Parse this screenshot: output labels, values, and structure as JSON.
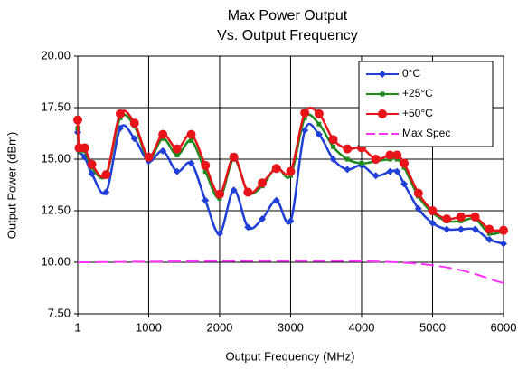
{
  "chart_data": {
    "type": "line",
    "title": [
      "Max  Power Output",
      "Vs. Output Frequency"
    ],
    "x_label": "Output Frequency (MHz)",
    "y_label": "Output Power (dBm)",
    "x": [
      1,
      20,
      100,
      200,
      400,
      600,
      800,
      1000,
      1200,
      1400,
      1600,
      1800,
      2000,
      2200,
      2400,
      2600,
      2800,
      3000,
      3200,
      3400,
      3600,
      3800,
      4000,
      4200,
      4400,
      4500,
      4600,
      4800,
      5000,
      5200,
      5400,
      5600,
      5800,
      6000
    ],
    "series": [
      {
        "name": "0°C",
        "color": "#1f3fd6",
        "marker": "diamond",
        "values": [
          16.3,
          15.4,
          15.1,
          14.3,
          13.4,
          16.5,
          16.0,
          14.9,
          15.4,
          14.4,
          14.8,
          13.0,
          11.4,
          13.5,
          11.7,
          12.1,
          13.0,
          12.0,
          16.4,
          16.2,
          15.0,
          14.5,
          14.7,
          14.2,
          14.4,
          14.4,
          13.8,
          12.6,
          11.9,
          11.6,
          11.6,
          11.6,
          11.1,
          10.9
        ]
      },
      {
        "name": "+25°C",
        "color": "#1e8a1e",
        "marker": "square",
        "values": [
          16.5,
          15.4,
          15.4,
          14.6,
          14.2,
          17.0,
          16.6,
          15.0,
          16.0,
          15.2,
          15.9,
          14.4,
          13.1,
          15.0,
          13.4,
          13.7,
          14.6,
          14.2,
          17.0,
          16.7,
          15.6,
          15.0,
          14.8,
          14.9,
          15.0,
          15.0,
          14.6,
          13.2,
          12.4,
          12.0,
          12.0,
          12.1,
          11.4,
          11.5
        ]
      },
      {
        "name": "+50°C",
        "color": "#e8141a",
        "marker": "circle",
        "values": [
          16.9,
          15.55,
          15.55,
          14.75,
          14.25,
          17.2,
          16.75,
          15.1,
          16.2,
          15.5,
          16.2,
          14.7,
          13.3,
          15.1,
          13.4,
          13.85,
          14.55,
          14.4,
          17.25,
          17.2,
          15.95,
          15.5,
          15.55,
          15.0,
          15.2,
          15.2,
          14.8,
          13.35,
          12.5,
          12.1,
          12.2,
          12.2,
          11.6,
          11.55
        ]
      },
      {
        "name": "Max Spec",
        "color": "#ff33ff",
        "marker": "none",
        "dashed": true,
        "x": [
          1,
          4500,
          6000
        ],
        "values": [
          10,
          10,
          9
        ]
      }
    ],
    "xlim": [
      1,
      6000
    ],
    "xticks": [
      1,
      1000,
      2000,
      3000,
      4000,
      5000,
      6000
    ],
    "ylim": [
      7.5,
      20
    ],
    "yticks": [
      {
        "value": 7.5,
        "label": "7.50"
      },
      {
        "value": 10,
        "label": "10.00"
      },
      {
        "value": 12.5,
        "label": "12.50"
      },
      {
        "value": 15,
        "label": "15.00"
      },
      {
        "value": 17.5,
        "label": "17.50"
      },
      {
        "value": 20,
        "label": "20.00"
      }
    ],
    "grid": true,
    "legend": "upper right"
  }
}
